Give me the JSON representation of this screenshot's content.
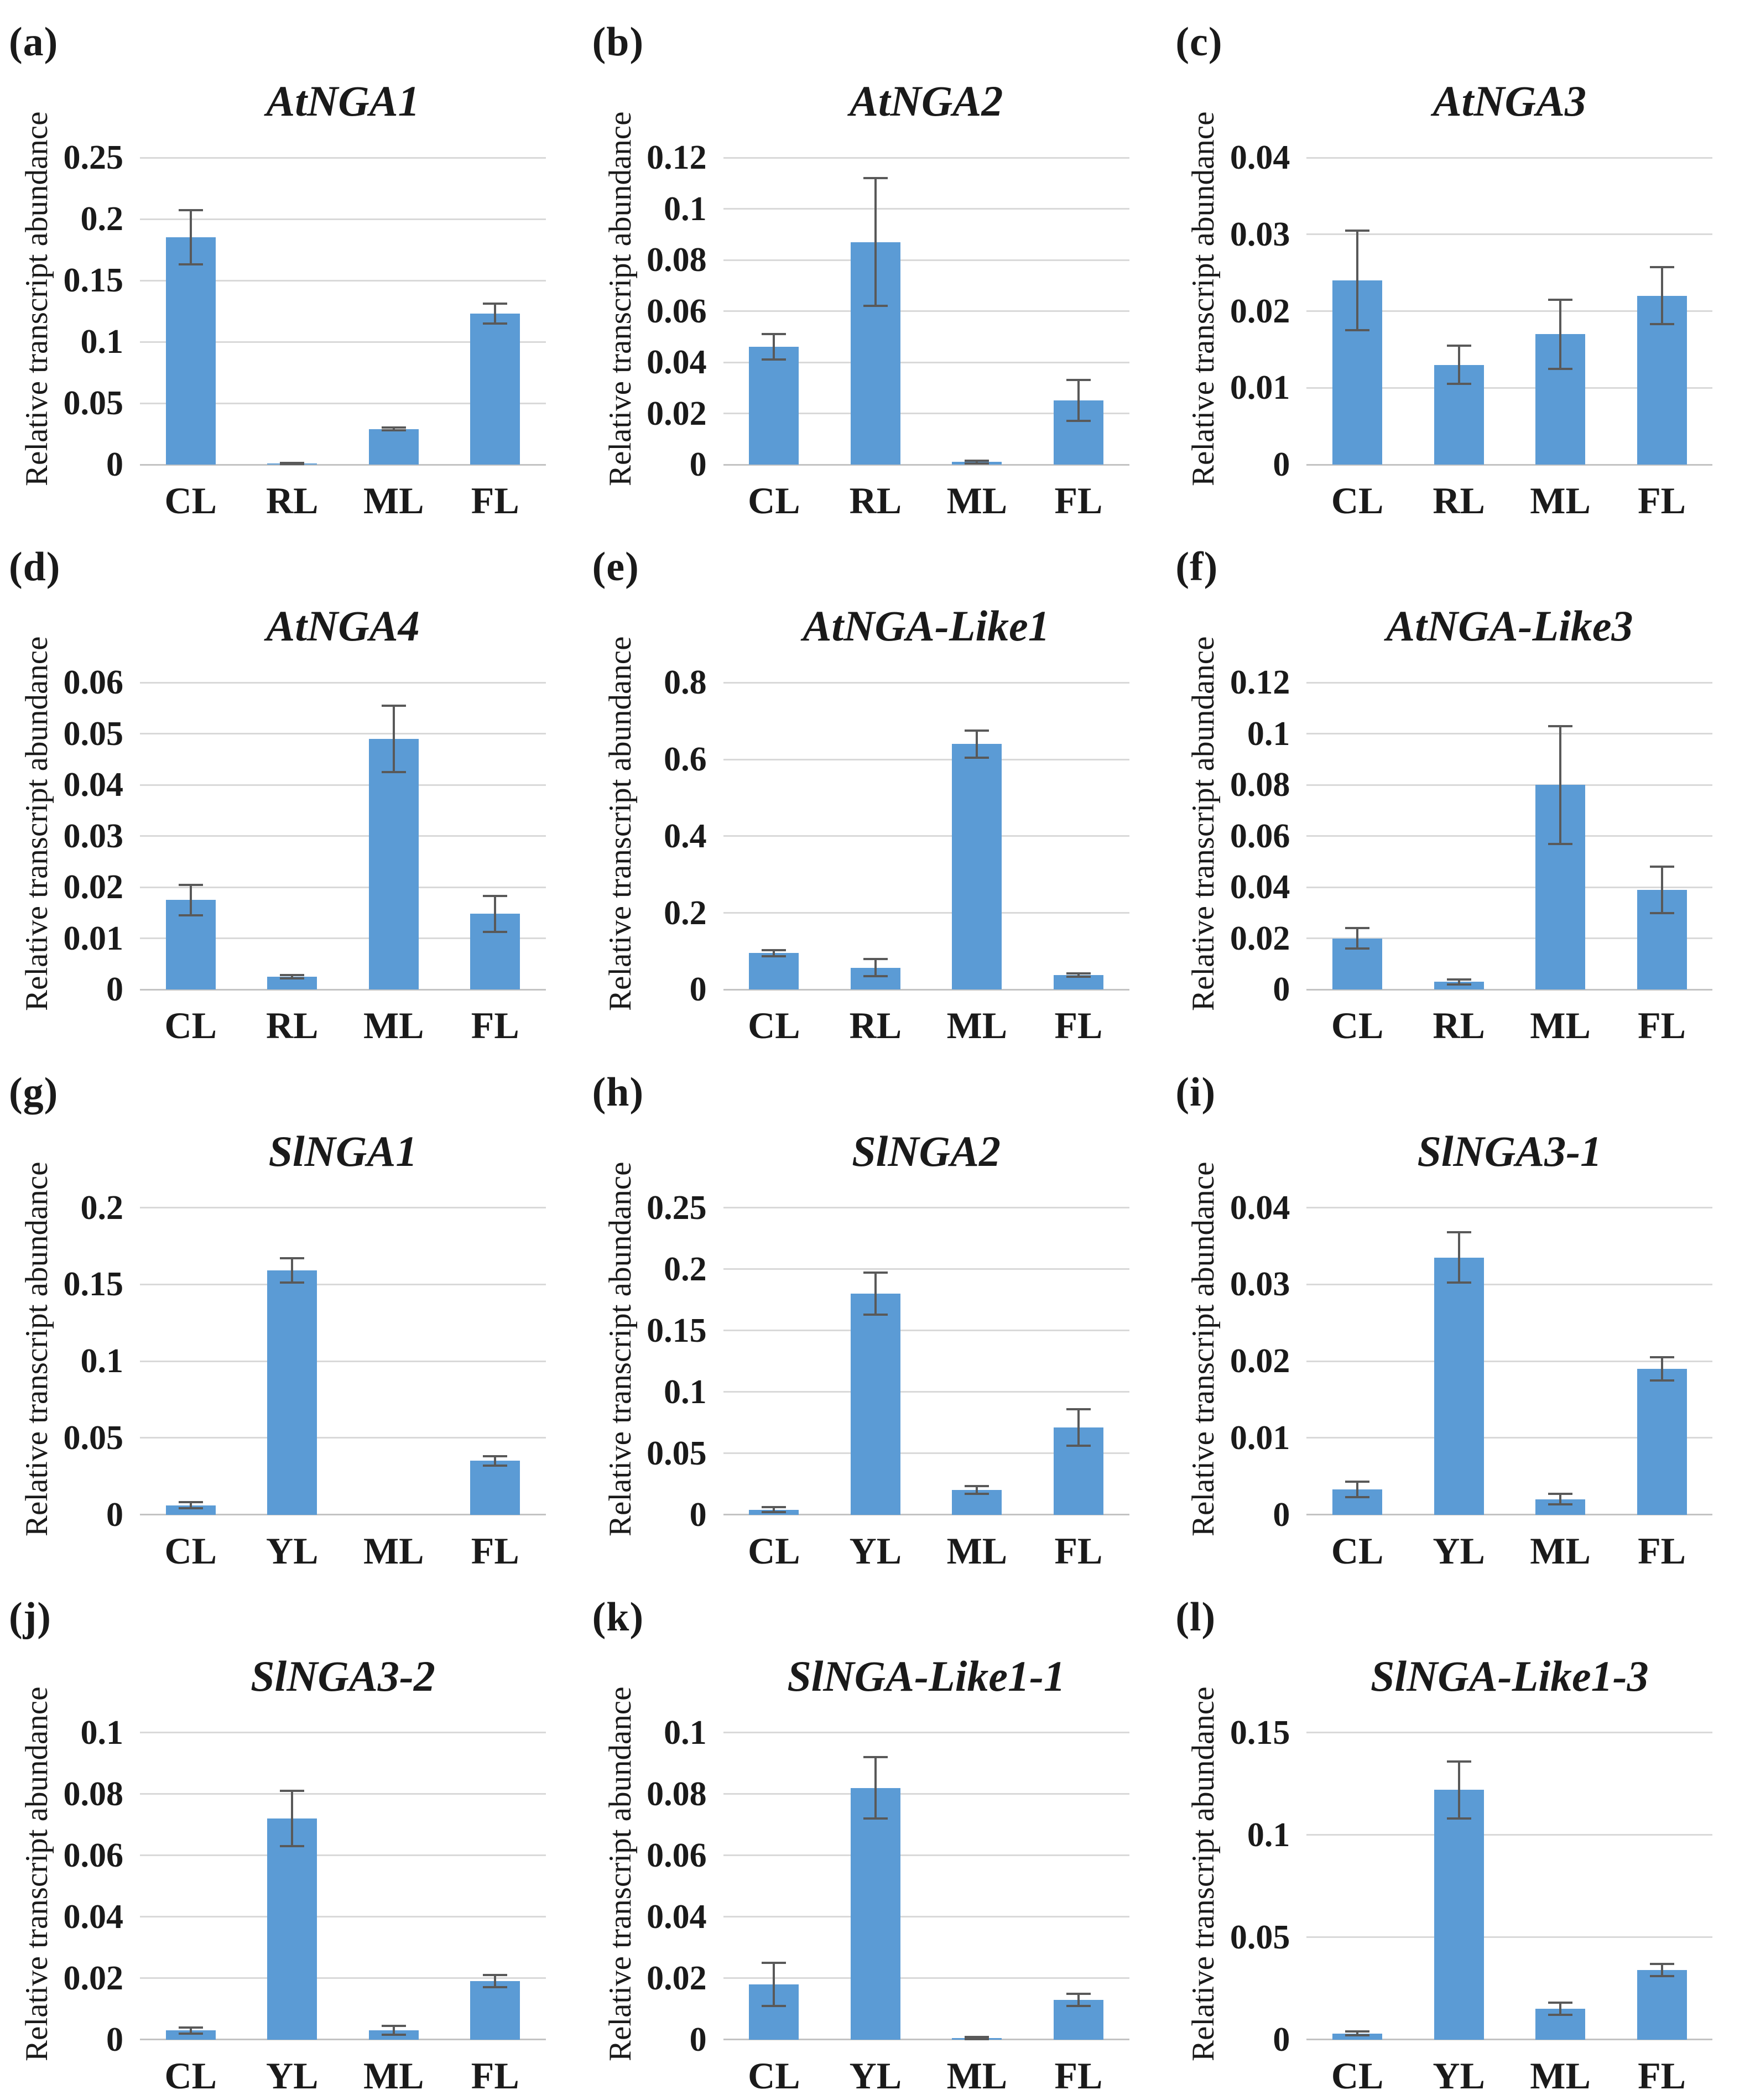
{
  "figure": {
    "y_axis_label": "Relative transcript abundance",
    "bar_color": "#5B9BD5",
    "error_bar_color": "#595959",
    "gridline_color": "#D9D9D9",
    "axis_line_color": "#C3C3C3",
    "text_color": "#1a1a1a"
  },
  "chart_data": [
    {
      "type": "bar",
      "panel_letter": "(a)",
      "title": "AtNGA1",
      "xlabel": "",
      "ylabel": "Relative transcript abundance",
      "categories": [
        "CL",
        "RL",
        "ML",
        "FL"
      ],
      "values": [
        0.185,
        0.001,
        0.029,
        0.123
      ],
      "errors": [
        0.022,
        0.0005,
        0.001,
        0.008
      ],
      "yticks": [
        0,
        0.05,
        0.1,
        0.15,
        0.2,
        0.25
      ],
      "ylim": [
        0,
        0.25
      ],
      "grid": true,
      "legend": "none"
    },
    {
      "type": "bar",
      "panel_letter": "(b)",
      "title": "AtNGA2",
      "xlabel": "",
      "ylabel": "Relative transcript abundance",
      "categories": [
        "CL",
        "RL",
        "ML",
        "FL"
      ],
      "values": [
        0.046,
        0.087,
        0.001,
        0.025
      ],
      "errors": [
        0.005,
        0.025,
        0.0005,
        0.008
      ],
      "yticks": [
        0,
        0.02,
        0.04,
        0.06,
        0.08,
        0.1,
        0.12
      ],
      "ylim": [
        0,
        0.12
      ],
      "grid": true,
      "legend": "none"
    },
    {
      "type": "bar",
      "panel_letter": "(c)",
      "title": "AtNGA3",
      "xlabel": "",
      "ylabel": "Relative transcript abundance",
      "categories": [
        "CL",
        "RL",
        "ML",
        "FL"
      ],
      "values": [
        0.024,
        0.013,
        0.017,
        0.022
      ],
      "errors": [
        0.0065,
        0.0025,
        0.0045,
        0.0037
      ],
      "yticks": [
        0,
        0.01,
        0.02,
        0.03,
        0.04
      ],
      "ylim": [
        0,
        0.04
      ],
      "grid": true,
      "legend": "none"
    },
    {
      "type": "bar",
      "panel_letter": "(d)",
      "title": "AtNGA4",
      "xlabel": "",
      "ylabel": "Relative transcript abundance",
      "categories": [
        "CL",
        "RL",
        "ML",
        "FL"
      ],
      "values": [
        0.0175,
        0.0025,
        0.049,
        0.0148
      ],
      "errors": [
        0.003,
        0.0003,
        0.0065,
        0.0035
      ],
      "yticks": [
        0,
        0.01,
        0.02,
        0.03,
        0.04,
        0.05,
        0.06
      ],
      "ylim": [
        0,
        0.06
      ],
      "grid": true,
      "legend": "none"
    },
    {
      "type": "bar",
      "panel_letter": "(e)",
      "title": "AtNGA-Like1",
      "xlabel": "",
      "ylabel": "Relative transcript abundance",
      "categories": [
        "CL",
        "RL",
        "ML",
        "FL"
      ],
      "values": [
        0.095,
        0.057,
        0.64,
        0.038
      ],
      "errors": [
        0.008,
        0.022,
        0.035,
        0.004
      ],
      "yticks": [
        0,
        0.2,
        0.4,
        0.6,
        0.8
      ],
      "ylim": [
        0,
        0.8
      ],
      "grid": true,
      "legend": "none"
    },
    {
      "type": "bar",
      "panel_letter": "(f)",
      "title": "AtNGA-Like3",
      "xlabel": "",
      "ylabel": "Relative transcript abundance",
      "categories": [
        "CL",
        "RL",
        "ML",
        "FL"
      ],
      "values": [
        0.02,
        0.003,
        0.08,
        0.039
      ],
      "errors": [
        0.004,
        0.001,
        0.023,
        0.009
      ],
      "yticks": [
        0,
        0.02,
        0.04,
        0.06,
        0.08,
        0.1,
        0.12
      ],
      "ylim": [
        0,
        0.12
      ],
      "grid": true,
      "legend": "none"
    },
    {
      "type": "bar",
      "panel_letter": "(g)",
      "title": "SlNGA1",
      "xlabel": "",
      "ylabel": "Relative transcript abundance",
      "categories": [
        "CL",
        "YL",
        "ML",
        "FL"
      ],
      "values": [
        0.006,
        0.159,
        0,
        0.035
      ],
      "errors": [
        0.002,
        0.008,
        0,
        0.003
      ],
      "yticks": [
        0,
        0.05,
        0.1,
        0.15,
        0.2
      ],
      "ylim": [
        0,
        0.2
      ],
      "grid": true,
      "legend": "none"
    },
    {
      "type": "bar",
      "panel_letter": "(h)",
      "title": "SlNGA2",
      "xlabel": "",
      "ylabel": "Relative transcript abundance",
      "categories": [
        "CL",
        "YL",
        "ML",
        "FL"
      ],
      "values": [
        0.004,
        0.18,
        0.02,
        0.071
      ],
      "errors": [
        0.002,
        0.017,
        0.003,
        0.015
      ],
      "yticks": [
        0,
        0.05,
        0.1,
        0.15,
        0.2,
        0.25
      ],
      "ylim": [
        0,
        0.25
      ],
      "grid": true,
      "legend": "none"
    },
    {
      "type": "bar",
      "panel_letter": "(i)",
      "title": "SlNGA3-1",
      "xlabel": "",
      "ylabel": "Relative transcript abundance",
      "categories": [
        "CL",
        "YL",
        "ML",
        "FL"
      ],
      "values": [
        0.0033,
        0.0335,
        0.002,
        0.019
      ],
      "errors": [
        0.001,
        0.0033,
        0.0007,
        0.0015
      ],
      "yticks": [
        0,
        0.01,
        0.02,
        0.03,
        0.04
      ],
      "ylim": [
        0,
        0.04
      ],
      "grid": true,
      "legend": "none"
    },
    {
      "type": "bar",
      "panel_letter": "(j)",
      "title": "SlNGA3-2",
      "xlabel": "",
      "ylabel": "Relative transcript abundance",
      "categories": [
        "CL",
        "YL",
        "ML",
        "FL"
      ],
      "values": [
        0.003,
        0.072,
        0.003,
        0.019
      ],
      "errors": [
        0.001,
        0.009,
        0.0015,
        0.002
      ],
      "yticks": [
        0,
        0.02,
        0.04,
        0.06,
        0.08,
        0.1
      ],
      "ylim": [
        0,
        0.1
      ],
      "grid": true,
      "legend": "none"
    },
    {
      "type": "bar",
      "panel_letter": "(k)",
      "title": "SlNGA-Like1-1",
      "xlabel": "",
      "ylabel": "Relative transcript abundance",
      "categories": [
        "CL",
        "YL",
        "ML",
        "FL"
      ],
      "values": [
        0.018,
        0.082,
        0.0005,
        0.013
      ],
      "errors": [
        0.007,
        0.01,
        0.0003,
        0.002
      ],
      "yticks": [
        0,
        0.02,
        0.04,
        0.06,
        0.08,
        0.1
      ],
      "ylim": [
        0,
        0.1
      ],
      "grid": true,
      "legend": "none"
    },
    {
      "type": "bar",
      "panel_letter": "(l)",
      "title": "SlNGA-Like1-3",
      "xlabel": "",
      "ylabel": "Relative transcript abundance",
      "categories": [
        "CL",
        "YL",
        "ML",
        "FL"
      ],
      "values": [
        0.003,
        0.122,
        0.015,
        0.034
      ],
      "errors": [
        0.001,
        0.014,
        0.003,
        0.003
      ],
      "yticks": [
        0,
        0.05,
        0.1,
        0.15
      ],
      "ylim": [
        0,
        0.15
      ],
      "grid": true,
      "legend": "none"
    }
  ]
}
